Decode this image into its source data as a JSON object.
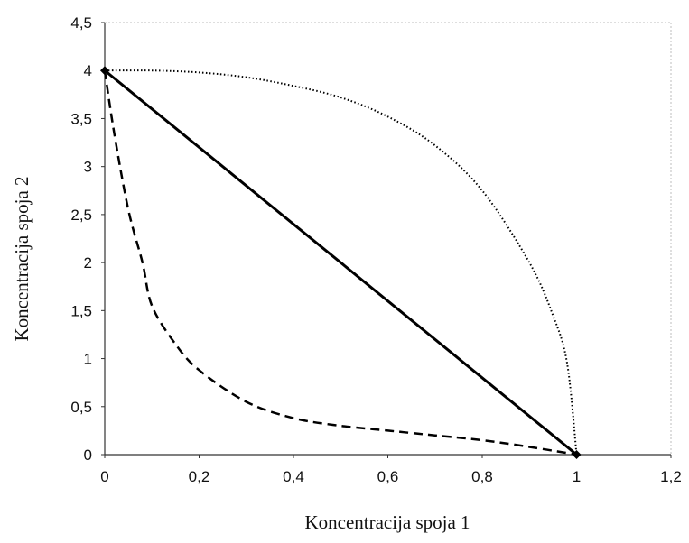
{
  "chart_data": {
    "type": "line",
    "title": "",
    "xlabel": "Koncentracija spoja 1",
    "ylabel": "Koncentracija spoja 2",
    "xlim": [
      0,
      1.2
    ],
    "ylim": [
      0,
      4.5
    ],
    "x_ticks": [
      "0",
      "0,2",
      "0,4",
      "0,6",
      "0,8",
      "1",
      "1,2"
    ],
    "y_ticks": [
      "0",
      "0,5",
      "1",
      "1,5",
      "2",
      "2,5",
      "3",
      "3,5",
      "4",
      "4,5"
    ],
    "grid": false,
    "legend": "none",
    "series": [
      {
        "style": "solid",
        "color": "#000000",
        "x": [
          0,
          1
        ],
        "y": [
          4,
          0
        ]
      },
      {
        "style": "dotted",
        "color": "#000000",
        "x": [
          0,
          0.1,
          0.2,
          0.3,
          0.4,
          0.5,
          0.6,
          0.7,
          0.8,
          0.9,
          0.95,
          0.98,
          1.0
        ],
        "y": [
          4.0,
          4.0,
          3.98,
          3.93,
          3.84,
          3.72,
          3.52,
          3.22,
          2.75,
          2.0,
          1.45,
          0.95,
          0.0
        ]
      },
      {
        "style": "dashed",
        "color": "#000000",
        "x": [
          0,
          0.02,
          0.05,
          0.08,
          0.1,
          0.15,
          0.2,
          0.3,
          0.4,
          0.5,
          0.6,
          0.7,
          0.8,
          0.9,
          1.0
        ],
        "y": [
          4.0,
          3.35,
          2.55,
          2.0,
          1.55,
          1.15,
          0.88,
          0.55,
          0.38,
          0.3,
          0.25,
          0.2,
          0.15,
          0.08,
          0.0
        ]
      }
    ],
    "markers": [
      {
        "x": 0,
        "y": 4
      },
      {
        "x": 1,
        "y": 0
      }
    ]
  }
}
